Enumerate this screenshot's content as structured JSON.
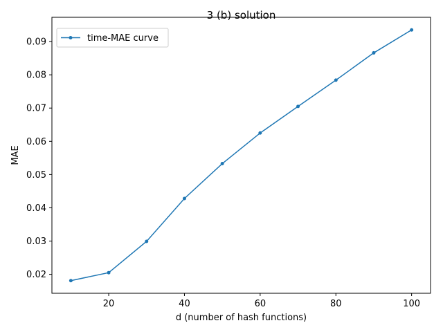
{
  "chart_data": {
    "type": "line",
    "title": "3 (b) solution",
    "xlabel": "d (number of hash functions)",
    "ylabel": "MAE",
    "xlim": [
      5,
      105
    ],
    "ylim": [
      0.0143,
      0.0973
    ],
    "xticks": [
      20,
      40,
      60,
      80,
      100
    ],
    "yticks": [
      0.02,
      0.03,
      0.04,
      0.05,
      0.06,
      0.07,
      0.08,
      0.09
    ],
    "ytick_labels": [
      "0.02",
      "0.03",
      "0.04",
      "0.05",
      "0.06",
      "0.07",
      "0.08",
      "0.09"
    ],
    "grid": false,
    "legend_position": "top-left",
    "series": [
      {
        "name": "time-MAE curve",
        "color": "#1f77b4",
        "marker": "circle",
        "x": [
          10,
          20,
          30,
          40,
          50,
          60,
          70,
          80,
          90,
          100
        ],
        "y": [
          0.0181,
          0.0205,
          0.0299,
          0.0428,
          0.0533,
          0.0625,
          0.0705,
          0.0784,
          0.0866,
          0.0935
        ]
      }
    ]
  }
}
